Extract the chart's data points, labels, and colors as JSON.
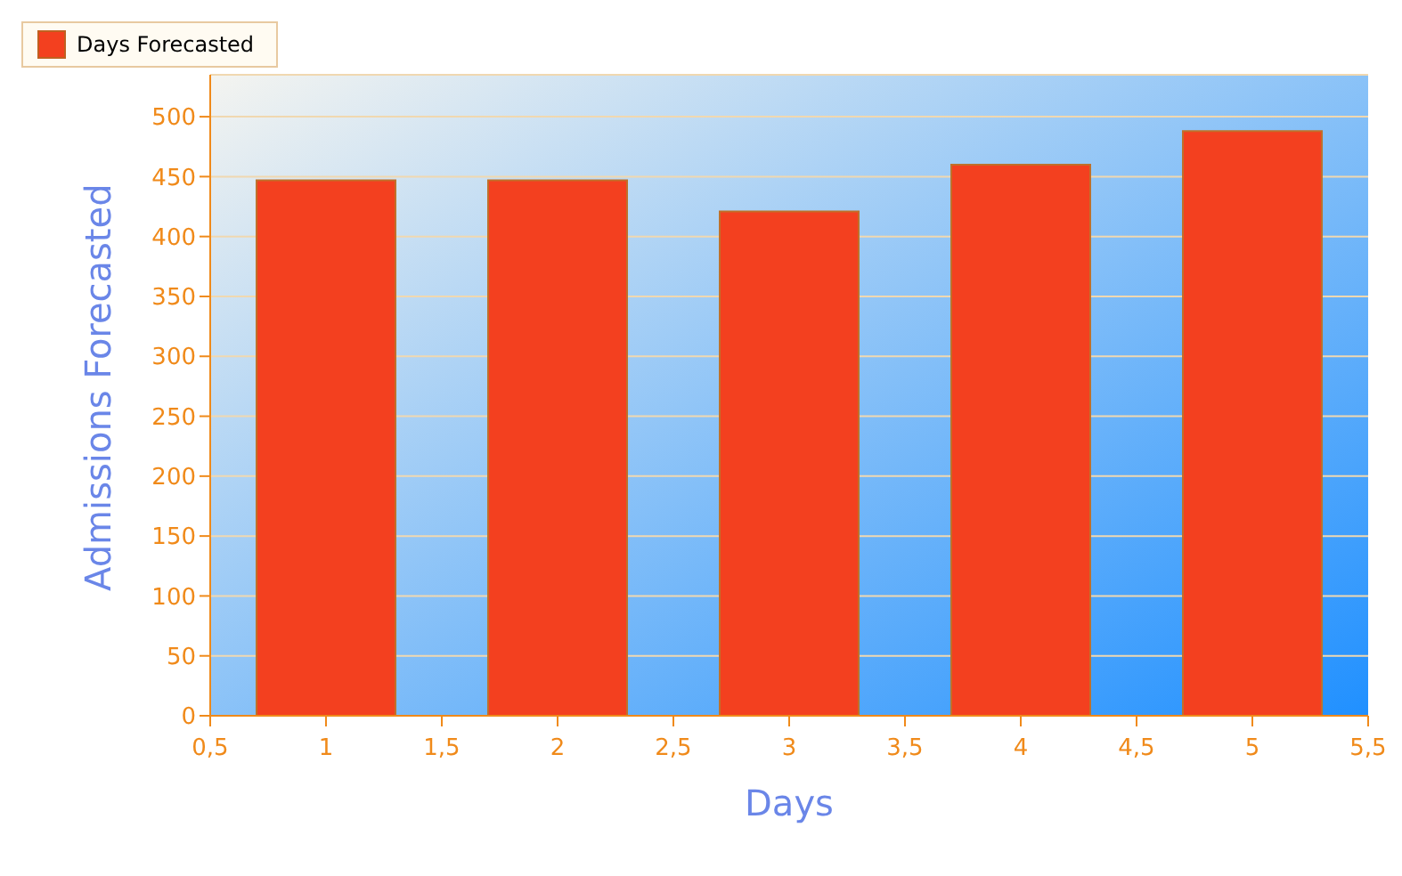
{
  "chart_data": {
    "type": "bar",
    "xlabel": "Days",
    "ylabel": "Admissions Forecasted",
    "x": [
      1,
      2,
      3,
      4,
      5
    ],
    "series": [
      {
        "name": "Days Forecasted",
        "color": "#f3401f",
        "values": [
          447,
          447,
          421,
          460,
          488
        ]
      }
    ],
    "xlim": [
      0.5,
      5.5
    ],
    "xticks": [
      {
        "value": 0.5,
        "label": "0,5"
      },
      1,
      {
        "value": 1.5,
        "label": "1,5"
      },
      2,
      {
        "value": 2.5,
        "label": "2,5"
      },
      3,
      {
        "value": 3.5,
        "label": "3,5"
      },
      4,
      {
        "value": 4.5,
        "label": "4,5"
      },
      5,
      {
        "value": 5.5,
        "label": "5,5"
      }
    ],
    "ylim": [
      0,
      535
    ],
    "yticks": [
      0,
      50,
      100,
      150,
      200,
      250,
      300,
      350,
      400,
      450,
      500
    ],
    "grid": "y",
    "legend": "top left"
  }
}
